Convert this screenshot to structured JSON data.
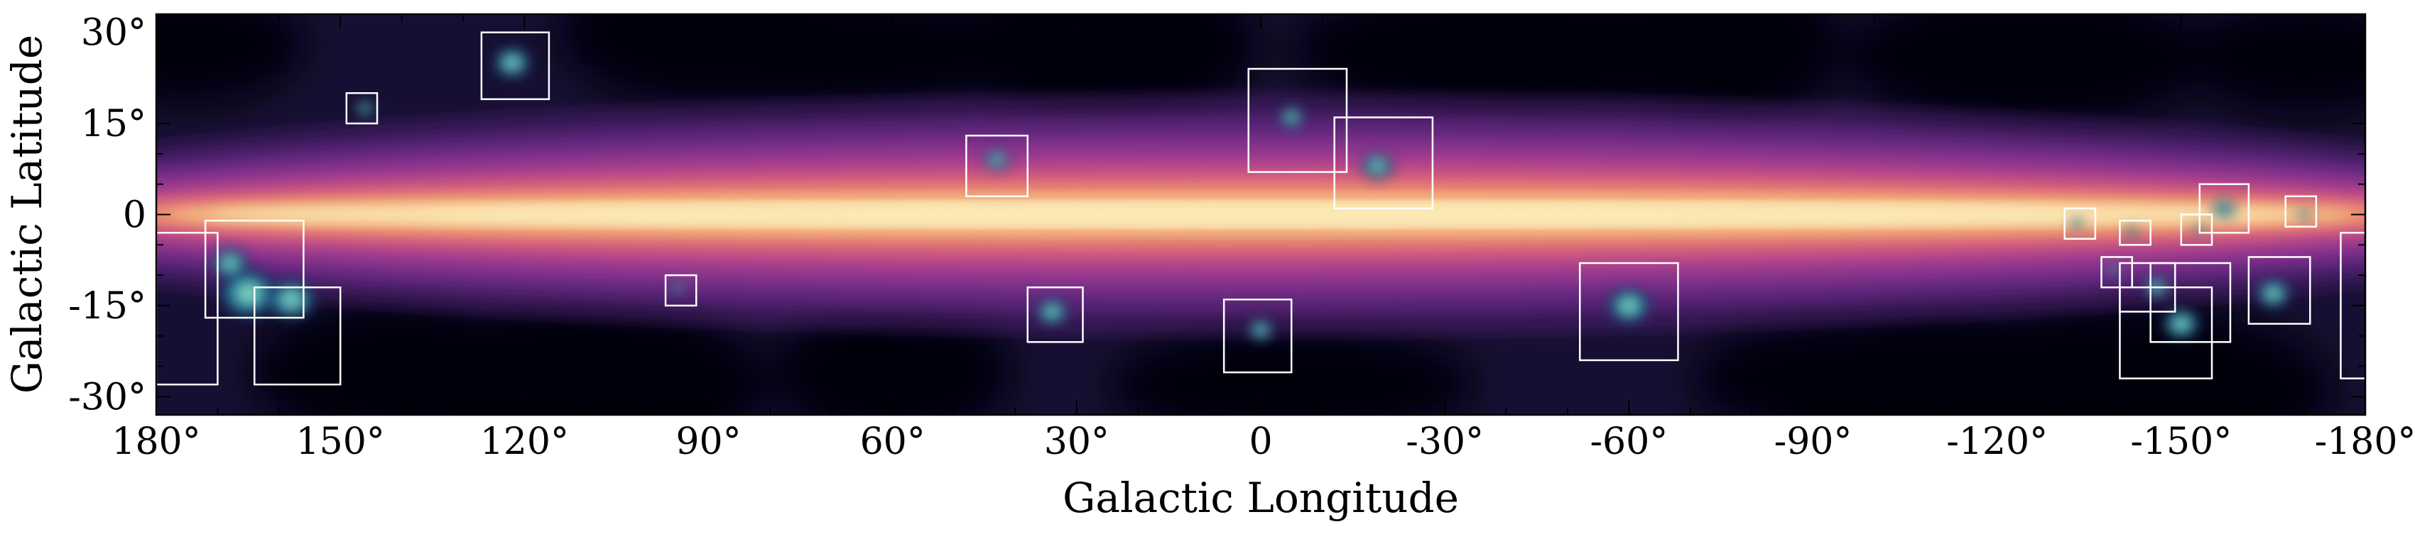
{
  "chart_data": {
    "type": "heatmap",
    "title": "",
    "xlabel": "Galactic Longitude",
    "ylabel": "Galactic Latitude",
    "x_ticks": [
      {
        "value": 180,
        "label": "180°"
      },
      {
        "value": 150,
        "label": "150°"
      },
      {
        "value": 120,
        "label": "120°"
      },
      {
        "value": 90,
        "label": "90°"
      },
      {
        "value": 60,
        "label": "60°"
      },
      {
        "value": 30,
        "label": "30°"
      },
      {
        "value": 0,
        "label": "0"
      },
      {
        "value": -30,
        "label": "-30°"
      },
      {
        "value": -60,
        "label": "-60°"
      },
      {
        "value": -90,
        "label": "-90°"
      },
      {
        "value": -120,
        "label": "-120°"
      },
      {
        "value": -150,
        "label": "-150°"
      },
      {
        "value": -180,
        "label": "-180°"
      }
    ],
    "y_ticks": [
      {
        "value": 30,
        "label": "30°"
      },
      {
        "value": 15,
        "label": "15°"
      },
      {
        "value": 0,
        "label": "0"
      },
      {
        "value": -15,
        "label": "-15°"
      },
      {
        "value": -30,
        "label": "-30°"
      }
    ],
    "xlim": [
      180,
      -180
    ],
    "ylim": [
      -33,
      33
    ],
    "x_minor_step": 10,
    "y_minor_step": 5,
    "colormap": {
      "name": "magma-like",
      "stops": [
        "#06040f",
        "#170f33",
        "#2e1753",
        "#4a1e6e",
        "#6a2a84",
        "#8a3490",
        "#ac3f8e",
        "#cc5482",
        "#e27372",
        "#ef9b72",
        "#f6c68a",
        "#fbe8b5"
      ]
    },
    "overlay_colormap": {
      "name": "mako-like",
      "stops": [
        "#1b3a6b",
        "#2d7fa0",
        "#4fc0b6",
        "#aee9d0",
        "#ffffff"
      ]
    },
    "band_profile": {
      "peak_latitude": 0,
      "core_half_width_deg": 3,
      "envelope_half_width_deg": 20
    },
    "regions": [
      {
        "name": "box-1",
        "l_range": [
          180,
          170
        ],
        "b_range": [
          -28,
          -3
        ]
      },
      {
        "name": "box-2",
        "l_range": [
          172,
          156
        ],
        "b_range": [
          -17,
          -1
        ]
      },
      {
        "name": "box-3",
        "l_range": [
          164,
          150
        ],
        "b_range": [
          -28,
          -12
        ]
      },
      {
        "name": "box-4",
        "l_range": [
          149,
          144
        ],
        "b_range": [
          15,
          20
        ]
      },
      {
        "name": "box-5",
        "l_range": [
          127,
          116
        ],
        "b_range": [
          19,
          30
        ]
      },
      {
        "name": "box-6",
        "l_range": [
          97,
          92
        ],
        "b_range": [
          -15,
          -10
        ]
      },
      {
        "name": "box-7",
        "l_range": [
          48,
          38
        ],
        "b_range": [
          3,
          13
        ]
      },
      {
        "name": "box-8",
        "l_range": [
          38,
          29
        ],
        "b_range": [
          -21,
          -12
        ]
      },
      {
        "name": "box-9",
        "l_range": [
          6,
          -5
        ],
        "b_range": [
          -26,
          -14
        ]
      },
      {
        "name": "box-10",
        "l_range": [
          2,
          -14
        ],
        "b_range": [
          7,
          24
        ]
      },
      {
        "name": "box-11",
        "l_range": [
          -12,
          -28
        ],
        "b_range": [
          1,
          16
        ]
      },
      {
        "name": "box-12",
        "l_range": [
          -52,
          -68
        ],
        "b_range": [
          -24,
          -8
        ]
      },
      {
        "name": "box-13",
        "l_range": [
          -131,
          -136
        ],
        "b_range": [
          -4,
          1
        ]
      },
      {
        "name": "box-14",
        "l_range": [
          -137,
          -142
        ],
        "b_range": [
          -12,
          -7
        ]
      },
      {
        "name": "box-15",
        "l_range": [
          -140,
          -145
        ],
        "b_range": [
          -5,
          -1
        ]
      },
      {
        "name": "box-16",
        "l_range": [
          -140,
          -149
        ],
        "b_range": [
          -16,
          -8
        ]
      },
      {
        "name": "box-17",
        "l_range": [
          -140,
          -155
        ],
        "b_range": [
          -27,
          -12
        ]
      },
      {
        "name": "box-18",
        "l_range": [
          -145,
          -158
        ],
        "b_range": [
          -21,
          -8
        ]
      },
      {
        "name": "box-19",
        "l_range": [
          -150,
          -155
        ],
        "b_range": [
          -5,
          0
        ]
      },
      {
        "name": "box-20",
        "l_range": [
          -153,
          -161
        ],
        "b_range": [
          -3,
          5
        ]
      },
      {
        "name": "box-21",
        "l_range": [
          -161,
          -171
        ],
        "b_range": [
          -18,
          -7
        ]
      },
      {
        "name": "box-22",
        "l_range": [
          -167,
          -172
        ],
        "b_range": [
          -2,
          3
        ]
      },
      {
        "name": "box-23",
        "l_range": [
          -176,
          -181
        ],
        "b_range": [
          -27,
          -3
        ]
      }
    ],
    "clouds": [
      {
        "l": 165,
        "b": -13,
        "size": 5.2
      },
      {
        "l": 168,
        "b": -8,
        "size": 3.2
      },
      {
        "l": 158,
        "b": -14,
        "size": 4.2
      },
      {
        "l": 146,
        "b": 17.5,
        "size": 1.6
      },
      {
        "l": 122,
        "b": 25,
        "size": 3.2
      },
      {
        "l": 95,
        "b": -12,
        "size": 1.2
      },
      {
        "l": 43,
        "b": 9,
        "size": 2.2
      },
      {
        "l": 34,
        "b": -16,
        "size": 2.8
      },
      {
        "l": 0,
        "b": -19,
        "size": 2.2
      },
      {
        "l": -5,
        "b": 16,
        "size": 2.2
      },
      {
        "l": -19,
        "b": 8,
        "size": 2.8
      },
      {
        "l": -60,
        "b": -15,
        "size": 3.8
      },
      {
        "l": -133,
        "b": -1.5,
        "size": 1.2
      },
      {
        "l": -142,
        "b": -3,
        "size": 1.2
      },
      {
        "l": -139,
        "b": -9,
        "size": 1.2
      },
      {
        "l": -146,
        "b": -12,
        "size": 2.2
      },
      {
        "l": -150,
        "b": -18,
        "size": 3.2
      },
      {
        "l": -153,
        "b": -2.5,
        "size": 1.1
      },
      {
        "l": -157,
        "b": 1,
        "size": 2.0
      },
      {
        "l": -165,
        "b": -13,
        "size": 3.0
      },
      {
        "l": -170,
        "b": 0,
        "size": 1.1
      }
    ]
  }
}
